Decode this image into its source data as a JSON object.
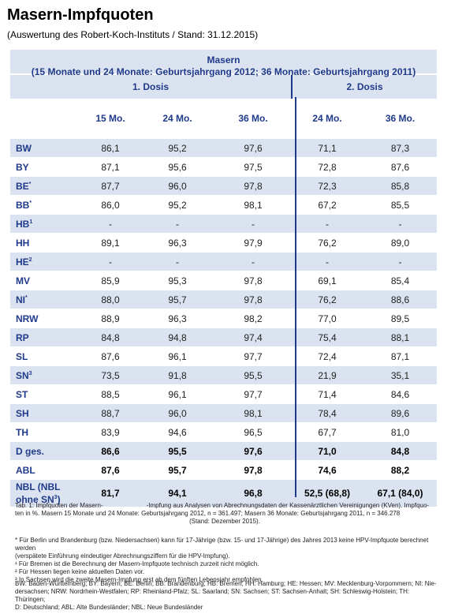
{
  "title": "Masern-Impfquoten",
  "subtitle": "(Auswertung des Robert-Koch-Instituts / Stand: 31.12.2015)",
  "table": {
    "header_line1": "Masern",
    "header_line2": "(15 Monate und 24 Monate: Geburtsjahrgang 2012; 36 Monate: Geburtsjahrgang 2011)",
    "group1": "1. Dosis",
    "group2": "2. Dosis",
    "cols": [
      "15 Mo.",
      "24 Mo.",
      "36 Mo.",
      "24 Mo.",
      "36 Mo."
    ],
    "rows": [
      {
        "label": "BW",
        "sup": "",
        "v": [
          "86,1",
          "95,2",
          "97,6",
          "71,1",
          "87,3"
        ]
      },
      {
        "label": "BY",
        "sup": "",
        "v": [
          "87,1",
          "95,6",
          "97,5",
          "72,8",
          "87,6"
        ]
      },
      {
        "label": "BE",
        "sup": "*",
        "v": [
          "87,7",
          "96,0",
          "97,8",
          "72,3",
          "85,8"
        ]
      },
      {
        "label": "BB",
        "sup": "*",
        "v": [
          "86,0",
          "95,2",
          "98,1",
          "67,2",
          "85,5"
        ]
      },
      {
        "label": "HB",
        "sup": "1",
        "v": [
          "-",
          "-",
          "-",
          "-",
          "-"
        ]
      },
      {
        "label": "HH",
        "sup": "",
        "v": [
          "89,1",
          "96,3",
          "97,9",
          "76,2",
          "89,0"
        ]
      },
      {
        "label": "HE",
        "sup": "2",
        "v": [
          "-",
          "-",
          "-",
          "-",
          "-"
        ]
      },
      {
        "label": "MV",
        "sup": "",
        "v": [
          "85,9",
          "95,3",
          "97,8",
          "69,1",
          "85,4"
        ]
      },
      {
        "label": "NI",
        "sup": "*",
        "v": [
          "88,0",
          "95,7",
          "97,8",
          "76,2",
          "88,6"
        ]
      },
      {
        "label": "NRW",
        "sup": "",
        "v": [
          "88,9",
          "96,3",
          "98,2",
          "77,0",
          "89,5"
        ]
      },
      {
        "label": "RP",
        "sup": "",
        "v": [
          "84,8",
          "94,8",
          "97,4",
          "75,4",
          "88,1"
        ]
      },
      {
        "label": "SL",
        "sup": "",
        "v": [
          "87,6",
          "96,1",
          "97,7",
          "72,4",
          "87,1"
        ]
      },
      {
        "label": "SN",
        "sup": "3",
        "v": [
          "73,5",
          "91,8",
          "95,5",
          "21,9",
          "35,1"
        ]
      },
      {
        "label": "ST",
        "sup": "",
        "v": [
          "88,5",
          "96,1",
          "97,7",
          "71,4",
          "84,6"
        ]
      },
      {
        "label": "SH",
        "sup": "",
        "v": [
          "88,7",
          "96,0",
          "98,1",
          "78,4",
          "89,6"
        ]
      },
      {
        "label": "TH",
        "sup": "",
        "v": [
          "83,9",
          "94,6",
          "96,5",
          "67,7",
          "81,0"
        ]
      },
      {
        "label": "D ges.",
        "sup": "",
        "v": [
          "86,6",
          "95,5",
          "97,6",
          "71,0",
          "84,8"
        ]
      },
      {
        "label": "ABL",
        "sup": "",
        "v": [
          "87,6",
          "95,7",
          "97,8",
          "74,6",
          "88,2"
        ]
      }
    ],
    "last_row": {
      "label1": "NBL (NBL",
      "label2": "ohne SN",
      "label2_sup": "3",
      "label2_end": ")",
      "v": [
        "81,7",
        "94,1",
        "96,8",
        "52,5 (68,8)",
        "67,1 (84,0)"
      ]
    }
  },
  "footer": {
    "caption_a": "Tab. 1:  Impfquoten der Masern-",
    "caption_b": "-Impfung aus Analysen von Abrechnungsdaten der Kassenärztlichen Vereinigungen (KVen). Impfquo-",
    "caption_2": "ten in %. Masern 15 Monate und 24 Monate: Geburtsjahrgang 2012, n = 361.497; Masern 36 Monate: Geburtsjahrgang 2011, n = 346.278",
    "caption_3": "(Stand: Dezember 2015).",
    "note_star_1": "* Für Berlin und Brandenburg (bzw. Niedersachsen) kann für 17-Jährige (bzw. 15- und 17-Jährige) des Jahres 2013 keine HPV-Impfquote berechnet werden",
    "note_star_2": "(verspätete Einführung eindeutiger Abrechnungsziffern für die HPV-Impfung).",
    "note_1": "¹ Für Bremen ist die Berechnung der Masern-Impfquote technisch zurzeit nicht möglich.",
    "note_2": "² Für Hessen liegen keine aktuellen Daten vor.",
    "note_3": "³ In Sachsen wird die zweite Masern-Impfung erst ab dem fünften Lebensjahr empfohlen.",
    "abbr_1": "BW: Baden-Württemberg; BY: Bayern; BE: Berlin; BB: Brandenburg; HB: Bremen; HH: Hamburg; HE: Hessen; MV: Mecklenburg-Vorpommern; NI: Nie-",
    "abbr_2": "dersachsen; NRW: Nordrhein-Westfalen; RP: Rheinland-Pfalz; SL: Saarland; SN: Sachsen; ST: Sachsen-Anhalt; SH: Schleswig-Holstein; TH: Thüringen;",
    "abbr_3": "D: Deutschland; ABL: Alte Bundesländer; NBL: Neue Bundesländer"
  }
}
